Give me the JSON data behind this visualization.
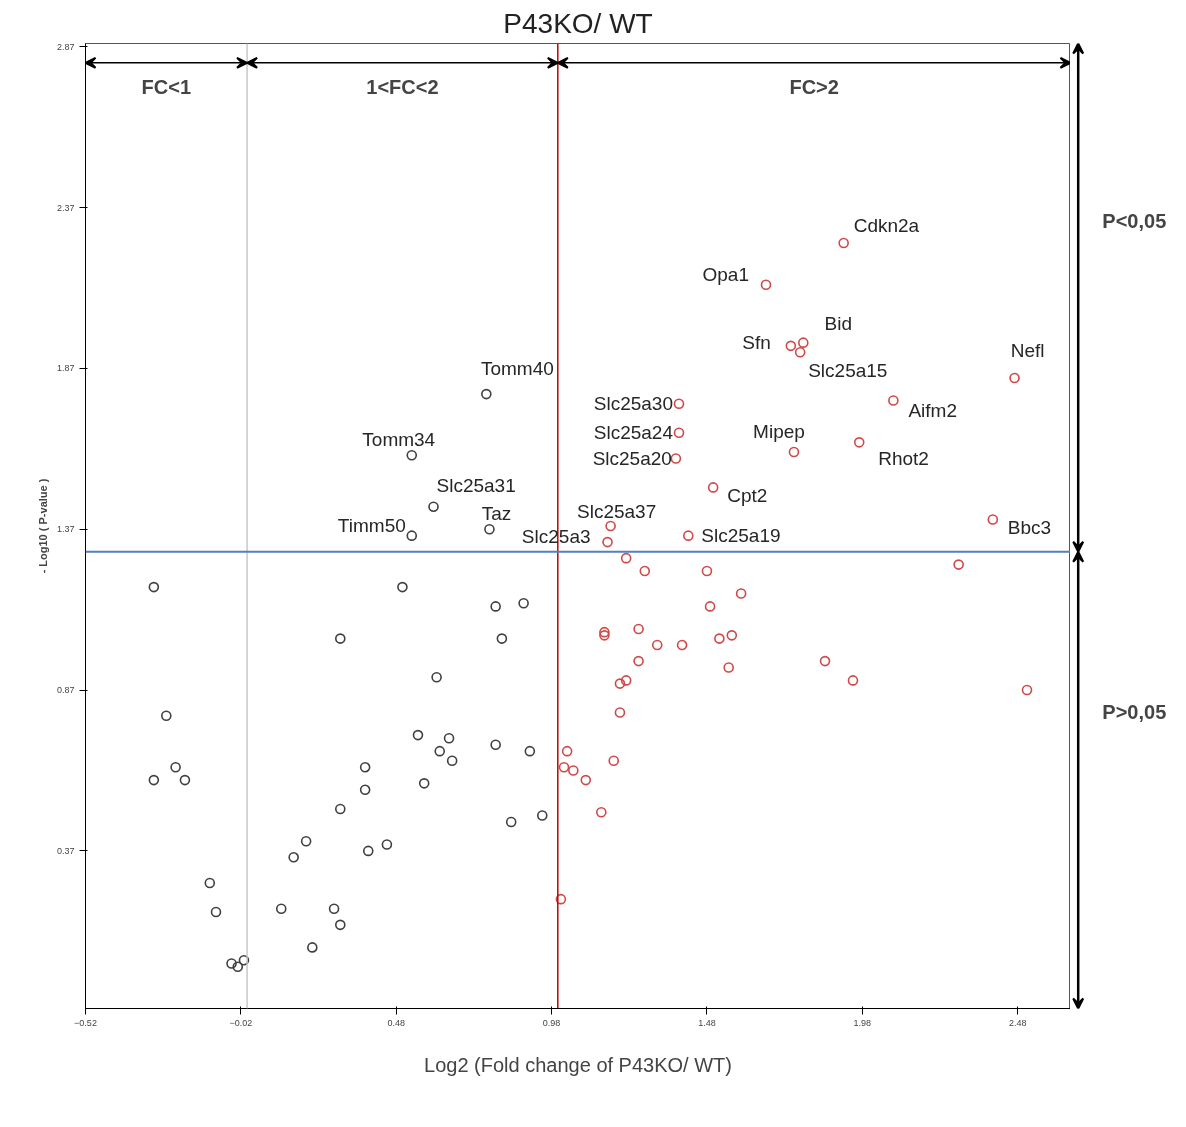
{
  "chart_data": {
    "type": "scatter",
    "title": "P43KO/ WT",
    "xlabel": "Log2 (Fold change of P43KO/ WT)",
    "ylabel": "- Log10 ( P-value )",
    "xlim": [
      -0.52,
      2.65
    ],
    "ylim": [
      -0.12,
      2.88
    ],
    "xticks": [
      -0.52,
      -0.02,
      0.48,
      0.98,
      1.48,
      1.98,
      2.48
    ],
    "yticks": [
      0.37,
      0.87,
      1.37,
      1.87,
      2.37,
      2.87
    ],
    "grid": false,
    "marker": "circle",
    "series": [
      {
        "color": "#404040",
        "x": [
          -0.3,
          -0.26,
          -0.3,
          -0.23,
          -0.2,
          -0.12,
          -0.1,
          -0.05,
          -0.03,
          -0.01,
          0.11,
          0.15,
          0.19,
          0.21,
          0.28,
          0.3,
          0.3,
          0.3,
          0.38,
          0.38,
          0.39,
          0.45,
          0.5,
          0.53,
          0.55,
          0.57,
          0.6,
          0.61,
          0.62,
          0.65,
          0.66,
          0.53,
          0.77,
          0.78,
          0.8,
          0.8,
          0.82,
          0.85,
          0.89,
          0.91,
          0.95
        ],
        "values": [
          1.19,
          0.79,
          0.59,
          0.63,
          0.59,
          0.27,
          0.18,
          0.02,
          0.01,
          0.03,
          0.19,
          0.35,
          0.4,
          0.07,
          0.19,
          0.14,
          1.03,
          0.5,
          0.63,
          0.56,
          0.37,
          0.39,
          1.19,
          1.35,
          0.73,
          0.58,
          1.44,
          0.91,
          0.68,
          0.72,
          0.65,
          1.6,
          1.79,
          1.37,
          1.13,
          0.7,
          1.03,
          0.46,
          1.14,
          0.68,
          0.48
        ]
      },
      {
        "color": "#d04848",
        "x": [
          1.16,
          1.17,
          1.39,
          1.39,
          1.38,
          1.42,
          1.5,
          1.67,
          1.92,
          1.75,
          1.79,
          1.78,
          1.76,
          1.97,
          2.08,
          2.47,
          2.4,
          2.29,
          1.22,
          1.28,
          1.48,
          1.59,
          1.49,
          1.15,
          1.15,
          1.26,
          1.32,
          1.4,
          1.52,
          1.56,
          1.26,
          1.55,
          1.86,
          1.95,
          2.51,
          1.22,
          1.2,
          1.2,
          1.03,
          1.02,
          1.05,
          1.09,
          1.18,
          1.14,
          1.01
        ],
        "values": [
          1.33,
          1.38,
          1.76,
          1.67,
          1.59,
          1.35,
          1.5,
          2.13,
          2.26,
          1.94,
          1.95,
          1.92,
          1.61,
          1.64,
          1.77,
          1.84,
          1.4,
          1.26,
          1.28,
          1.24,
          1.24,
          1.17,
          1.13,
          1.05,
          1.04,
          1.06,
          1.01,
          1.01,
          1.03,
          1.04,
          0.96,
          0.94,
          0.96,
          0.9,
          0.87,
          0.9,
          0.89,
          0.8,
          0.68,
          0.63,
          0.62,
          0.59,
          0.65,
          0.49,
          0.22
        ]
      }
    ],
    "ref_lines": [
      {
        "axis": "x",
        "value": 0,
        "color": "#c8c8c8"
      },
      {
        "axis": "x",
        "value": 1,
        "color": "#c00000"
      },
      {
        "axis": "y",
        "value": 1.3,
        "color": "#4f81bd"
      }
    ],
    "annotations": [
      {
        "text": "Cdkn2a",
        "x": 1.92,
        "y": 2.26
      },
      {
        "text": "Opa1",
        "x": 1.67,
        "y": 2.13
      },
      {
        "text": "Bid",
        "x": 1.79,
        "y": 1.95
      },
      {
        "text": "Sfn",
        "x": 1.75,
        "y": 1.94
      },
      {
        "text": "Slc25a15",
        "x": 1.78,
        "y": 1.92
      },
      {
        "text": "Nefl",
        "x": 2.47,
        "y": 1.84
      },
      {
        "text": "Tomm40",
        "x": 0.77,
        "y": 1.79
      },
      {
        "text": "Slc25a30",
        "x": 1.39,
        "y": 1.76
      },
      {
        "text": "Aifm2",
        "x": 2.08,
        "y": 1.77
      },
      {
        "text": "Slc25a24",
        "x": 1.39,
        "y": 1.67
      },
      {
        "text": "Mipep",
        "x": 1.76,
        "y": 1.61
      },
      {
        "text": "Rhot2",
        "x": 1.97,
        "y": 1.64
      },
      {
        "text": "Tomm34",
        "x": 0.53,
        "y": 1.6
      },
      {
        "text": "Slc25a20",
        "x": 1.38,
        "y": 1.59
      },
      {
        "text": "Cpt2",
        "x": 1.5,
        "y": 1.5
      },
      {
        "text": "Slc25a31",
        "x": 0.6,
        "y": 1.44
      },
      {
        "text": "Bbc3",
        "x": 2.4,
        "y": 1.4
      },
      {
        "text": "Slc25a37",
        "x": 1.17,
        "y": 1.38
      },
      {
        "text": "Taz",
        "x": 0.78,
        "y": 1.37
      },
      {
        "text": "Timm50",
        "x": 0.53,
        "y": 1.35
      },
      {
        "text": "Slc25a19",
        "x": 1.42,
        "y": 1.35
      },
      {
        "text": "Slc25a3",
        "x": 1.16,
        "y": 1.33
      },
      "FC<1",
      "1<FC<2",
      "FC>2",
      "P<0,05",
      "P>0,05"
    ]
  }
}
